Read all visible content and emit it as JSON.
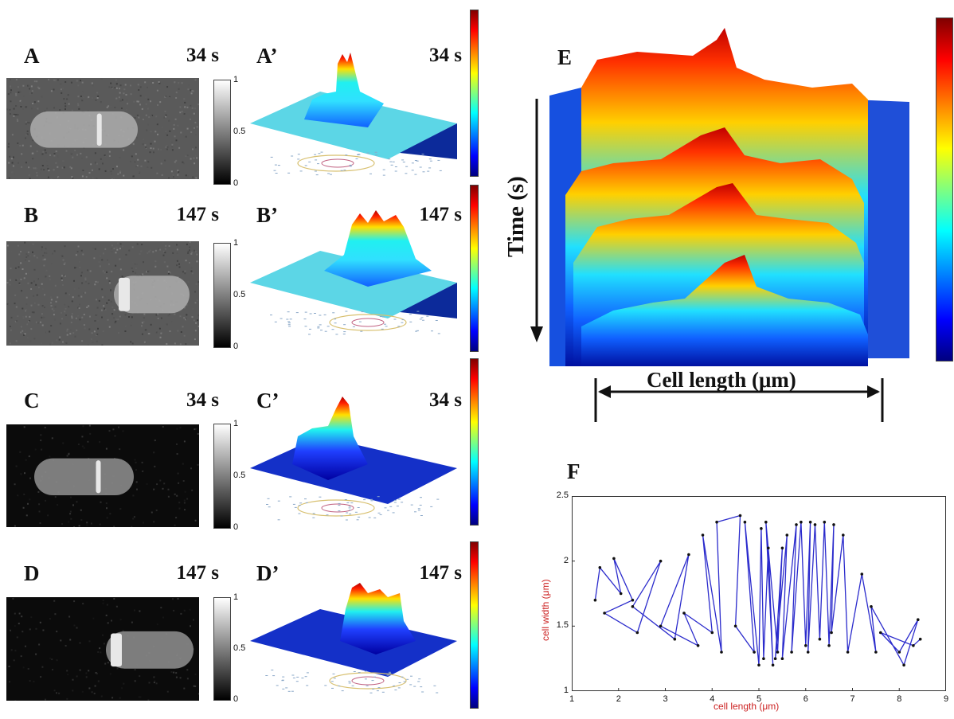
{
  "panels": [
    {
      "id": "A",
      "label": "A",
      "time": "34 s",
      "surface_label": "A’",
      "surface_time": "34 s",
      "background": "noisy-gray"
    },
    {
      "id": "B",
      "label": "B",
      "time": "147 s",
      "surface_label": "B’",
      "surface_time": "147 s",
      "background": "noisy-gray"
    },
    {
      "id": "C",
      "label": "C",
      "time": "34 s",
      "surface_label": "C’",
      "surface_time": "34 s",
      "background": "dark"
    },
    {
      "id": "D",
      "label": "D",
      "time": "147 s",
      "surface_label": "D’",
      "surface_time": "147 s",
      "background": "dark"
    }
  ],
  "grayscale_colorbar": {
    "ticks": [
      "1",
      "0.5",
      "0"
    ]
  },
  "panel_e": {
    "label": "E",
    "y_axis_label": "Time (s)",
    "x_axis_label": "Cell  length (μm)"
  },
  "panel_f": {
    "label": "F",
    "xlabel": "cell length (μm)",
    "ylabel": "cell width (μm)"
  },
  "colors": {
    "jet_low": "#00007f",
    "jet_mid": "#00ffff",
    "jet_high": "#800000",
    "trajectory": "#2b2bcc",
    "axis_label_red": "#cc2222"
  },
  "chart_data": {
    "type": "line",
    "title": "",
    "xlabel": "cell length (μm)",
    "ylabel": "cell width (μm)",
    "xlim": [
      1,
      9
    ],
    "ylim": [
      1,
      2.5
    ],
    "x_ticks": [
      "1",
      "2",
      "3",
      "4",
      "5",
      "6",
      "7",
      "8",
      "9"
    ],
    "y_ticks": [
      "1",
      "1.5",
      "2",
      "2.5"
    ],
    "grid": false,
    "series": [
      {
        "values": [
          [
            1.5,
            1.7
          ],
          [
            1.6,
            1.95
          ],
          [
            2.05,
            1.75
          ],
          [
            1.9,
            2.02
          ],
          [
            2.3,
            1.7
          ],
          [
            1.7,
            1.6
          ],
          [
            2.4,
            1.45
          ],
          [
            2.9,
            2.0
          ],
          [
            2.3,
            1.65
          ],
          [
            3.2,
            1.4
          ],
          [
            3.5,
            2.05
          ],
          [
            2.9,
            1.5
          ],
          [
            3.7,
            1.35
          ],
          [
            3.4,
            1.6
          ],
          [
            4.0,
            1.45
          ],
          [
            3.8,
            2.2
          ],
          [
            4.2,
            1.3
          ],
          [
            4.1,
            2.3
          ],
          [
            4.6,
            2.35
          ],
          [
            4.5,
            1.5
          ],
          [
            4.9,
            1.3
          ],
          [
            4.7,
            2.3
          ],
          [
            5.0,
            1.2
          ],
          [
            5.05,
            2.25
          ],
          [
            5.1,
            1.25
          ],
          [
            5.2,
            2.1
          ],
          [
            5.3,
            1.2
          ],
          [
            5.15,
            2.3
          ],
          [
            5.4,
            1.3
          ],
          [
            5.5,
            2.1
          ],
          [
            5.35,
            1.25
          ],
          [
            5.6,
            2.2
          ],
          [
            5.5,
            1.25
          ],
          [
            5.8,
            2.28
          ],
          [
            5.7,
            1.3
          ],
          [
            5.9,
            2.3
          ],
          [
            6.0,
            1.35
          ],
          [
            6.1,
            2.3
          ],
          [
            6.05,
            1.3
          ],
          [
            6.2,
            2.28
          ],
          [
            6.3,
            1.4
          ],
          [
            6.4,
            2.3
          ],
          [
            6.5,
            1.35
          ],
          [
            6.6,
            2.28
          ],
          [
            6.55,
            1.45
          ],
          [
            6.8,
            2.2
          ],
          [
            6.9,
            1.3
          ],
          [
            7.2,
            1.9
          ],
          [
            7.5,
            1.3
          ],
          [
            7.4,
            1.65
          ],
          [
            8.1,
            1.2
          ],
          [
            8.4,
            1.55
          ],
          [
            8.0,
            1.3
          ],
          [
            7.6,
            1.45
          ],
          [
            8.3,
            1.35
          ],
          [
            8.45,
            1.4
          ]
        ]
      }
    ]
  }
}
